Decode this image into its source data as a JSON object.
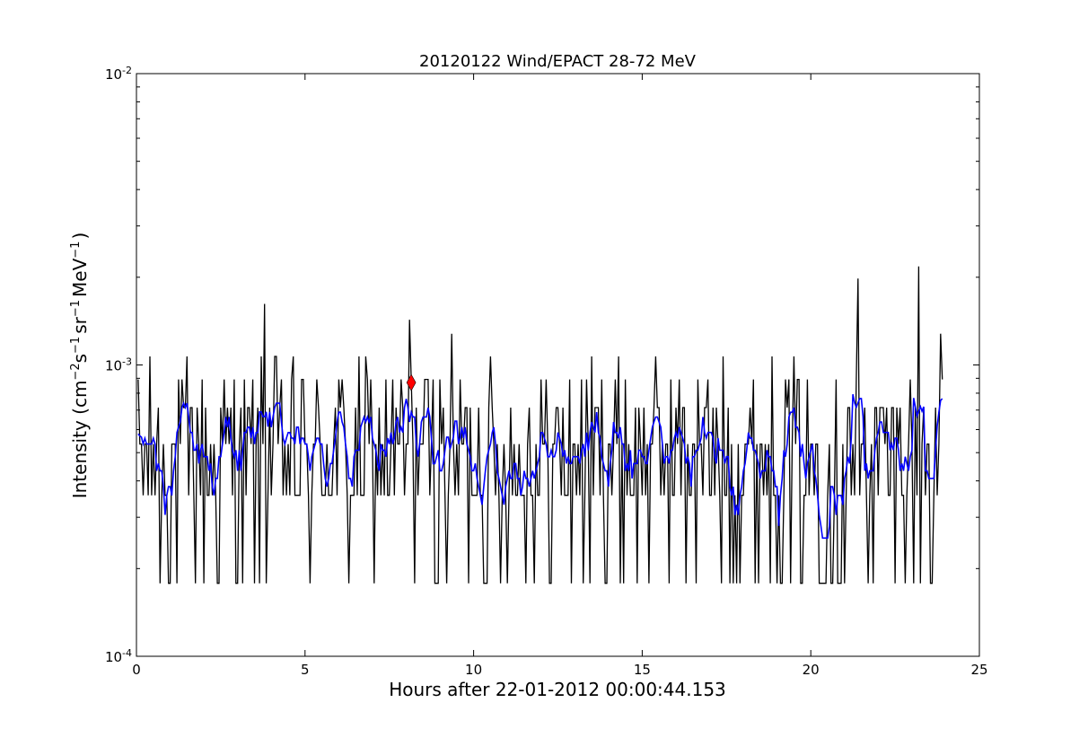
{
  "chart_data": {
    "type": "line",
    "title": "20120122 Wind/EPACT 28-72 MeV",
    "xlabel": "Hours after 22-01-2012 00:00:44.153",
    "ylabel": {
      "prefix": "Intensity (cm",
      "exp1": "−2",
      "s": "s",
      "exp2": "−1",
      "sr": "sr",
      "exp3": "−1",
      "mev": "MeV",
      "exp4": "−1",
      "suffix": ")"
    },
    "xlim": [
      0,
      25
    ],
    "ylim": [
      0.0001,
      0.01
    ],
    "yscale": "log",
    "grid": false,
    "x_ticks": [
      0,
      5,
      10,
      15,
      20,
      25
    ],
    "y_ticks": [
      {
        "value": 0.0001,
        "base": "10",
        "exp": "-4"
      },
      {
        "value": 0.001,
        "base": "10",
        "exp": "-3"
      },
      {
        "value": 0.01,
        "base": "10",
        "exp": "-2"
      }
    ],
    "series": [
      {
        "role": "raw",
        "color": "#000000",
        "x_start": 0.05,
        "x_step": 0.05,
        "levels": [
          0.000178,
          0.000357,
          0.000535,
          0.000714,
          0.000892,
          0.00107,
          0.00128,
          0.0014,
          0.00162,
          0.00198,
          0.00218
        ],
        "peaks": [
          {
            "x": 3.8,
            "y": 0.00162
          },
          {
            "x": 8.1,
            "y": 0.00143
          },
          {
            "x": 21.4,
            "y": 0.00198
          },
          {
            "x": 23.2,
            "y": 0.00218
          }
        ]
      },
      {
        "role": "smoothed",
        "color": "#0000ff"
      }
    ],
    "marker": {
      "x": 8.15,
      "y": 0.00087,
      "color": "#ff0000",
      "shape": "diamond"
    }
  }
}
